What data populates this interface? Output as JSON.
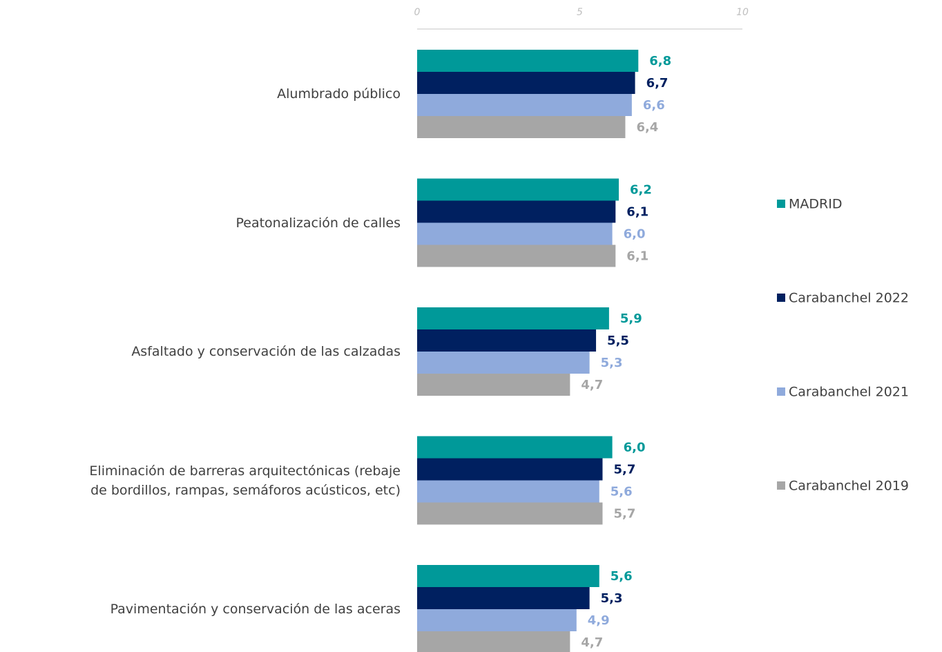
{
  "chart_data": {
    "type": "hbar",
    "categories": [
      "Alumbrado público",
      "Peatonalización de calles",
      "Asfaltado y conservación de las calzadas",
      "Eliminación de barreras arquitectónicas  (rebaje\nde bordillos, rampas, semáforos  acústicos, etc)",
      "Pavimentación y conservación de las aceras"
    ],
    "series": [
      {
        "name": "MADRID",
        "color": "#009999",
        "values": [
          6.8,
          6.2,
          5.9,
          6.0,
          5.6
        ],
        "value_labels": [
          "6,8",
          "6,2",
          "5,9",
          "6,0",
          "5,6"
        ]
      },
      {
        "name": "Carabanchel 2022",
        "color": "#002060",
        "values": [
          6.7,
          6.1,
          5.5,
          5.7,
          5.3
        ],
        "value_labels": [
          "6,7",
          "6,1",
          "5,5",
          "5,7",
          "5,3"
        ]
      },
      {
        "name": "Carabanchel 2021",
        "color": "#8faadc",
        "values": [
          6.6,
          6.0,
          5.3,
          5.6,
          4.9
        ],
        "value_labels": [
          "6,6",
          "6,0",
          "5,3",
          "5,6",
          "4,9"
        ]
      },
      {
        "name": "Carabanchel 2019",
        "color": "#a6a6a6",
        "values": [
          6.4,
          6.1,
          4.7,
          5.7,
          4.7
        ],
        "value_labels": [
          "6,4",
          "6,1",
          "4,7",
          "5,7",
          "4,7"
        ]
      }
    ],
    "xlim": [
      0,
      10
    ],
    "xticks": [
      0,
      5,
      10
    ],
    "legend": "right"
  }
}
